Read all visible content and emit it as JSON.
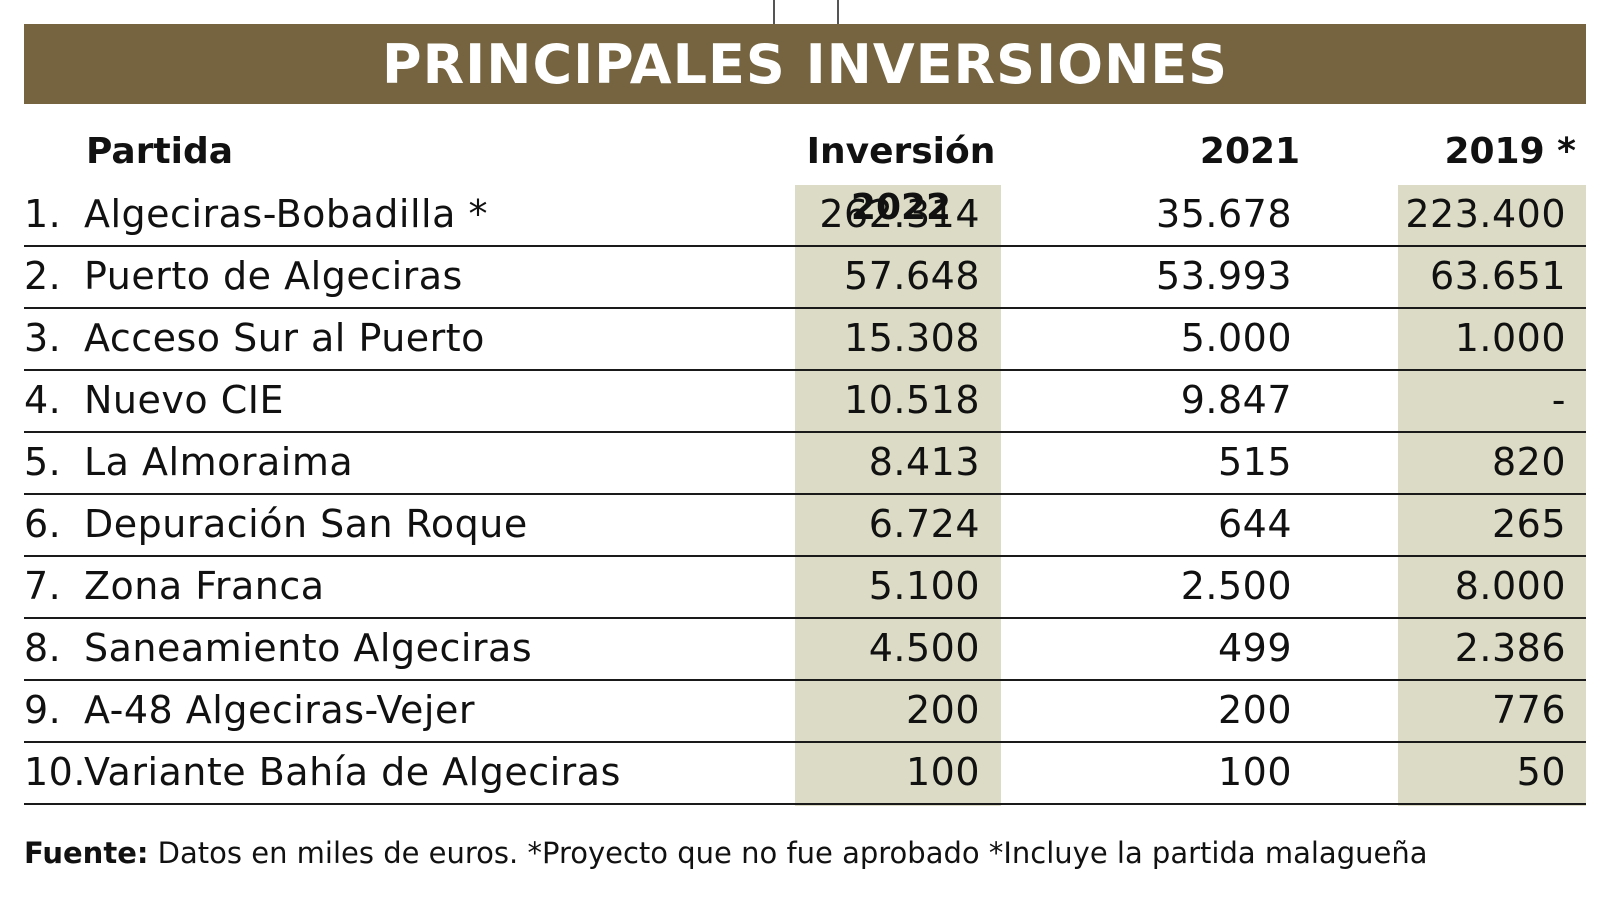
{
  "chart_data": {
    "type": "table",
    "title": "PRINCIPALES INVERSIONES",
    "columns": [
      "Partida",
      "Inversión 2022",
      "2021",
      "2019 *"
    ],
    "rows": [
      {
        "num": "1.",
        "name": "Algeciras-Bobadilla *",
        "v2022": "262.314",
        "v2021": "35.678",
        "v2019": "223.400"
      },
      {
        "num": "2.",
        "name": "Puerto de Algeciras",
        "v2022": "57.648",
        "v2021": "53.993",
        "v2019": "63.651"
      },
      {
        "num": "3.",
        "name": "Acceso Sur al Puerto",
        "v2022": "15.308",
        "v2021": "5.000",
        "v2019": "1.000"
      },
      {
        "num": "4.",
        "name": "Nuevo CIE",
        "v2022": "10.518",
        "v2021": "9.847",
        "v2019": "-"
      },
      {
        "num": "5.",
        "name": "La Almoraima",
        "v2022": "8.413",
        "v2021": "515",
        "v2019": "820"
      },
      {
        "num": "6.",
        "name": "Depuración San Roque",
        "v2022": "6.724",
        "v2021": "644",
        "v2019": "265"
      },
      {
        "num": "7.",
        "name": "Zona Franca",
        "v2022": "5.100",
        "v2021": "2.500",
        "v2019": "8.000"
      },
      {
        "num": "8.",
        "name": "Saneamiento Algeciras",
        "v2022": "4.500",
        "v2021": "499",
        "v2019": "2.386"
      },
      {
        "num": "9.",
        "name": "A-48 Algeciras-Vejer",
        "v2022": "200",
        "v2021": "200",
        "v2019": "776"
      },
      {
        "num": "10.",
        "name": "Variante Bahía de Algeciras",
        "v2022": "100",
        "v2021": "100",
        "v2019": "50"
      }
    ],
    "footer_label": "Fuente:",
    "footer_text": " Datos en miles de euros. *Proyecto que no fue aprobado *Incluye la partida malagueña"
  },
  "colors": {
    "banner": "#75643f",
    "highlight_column": "#dcdcc6",
    "text": "#111111"
  }
}
